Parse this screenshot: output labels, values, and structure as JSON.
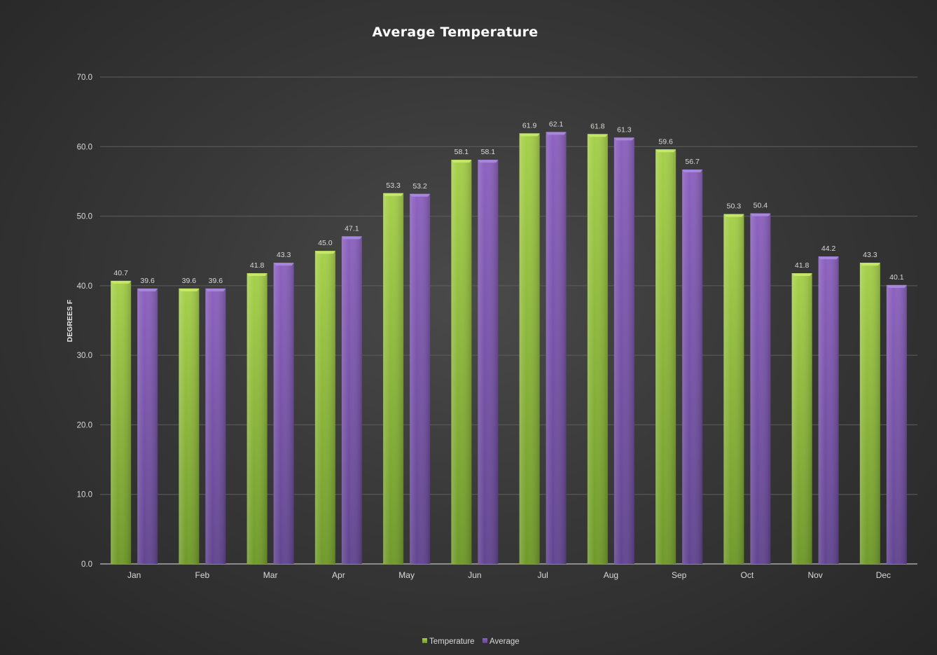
{
  "chart_data": {
    "type": "bar",
    "title": "Average Temperature",
    "xlabel": "",
    "ylabel": "DEGREES F",
    "ylim": [
      0,
      70
    ],
    "yticks": [
      "0.0",
      "10.0",
      "20.0",
      "30.0",
      "40.0",
      "50.0",
      "60.0",
      "70.0"
    ],
    "grid": true,
    "legend_position": "bottom",
    "categories": [
      "Jan",
      "Feb",
      "Mar",
      "Apr",
      "May",
      "Jun",
      "Jul",
      "Aug",
      "Sep",
      "Oct",
      "Nov",
      "Dec"
    ],
    "series": [
      {
        "name": "Temperature",
        "color": "#8fbf3a",
        "values": [
          40.7,
          39.6,
          41.8,
          45.0,
          53.3,
          58.1,
          61.9,
          61.8,
          59.6,
          50.3,
          41.8,
          43.3
        ]
      },
      {
        "name": "Average",
        "color": "#7c55ae",
        "values": [
          39.6,
          39.6,
          43.3,
          47.1,
          53.2,
          58.1,
          62.1,
          61.3,
          56.7,
          50.4,
          44.2,
          40.1
        ]
      }
    ]
  }
}
